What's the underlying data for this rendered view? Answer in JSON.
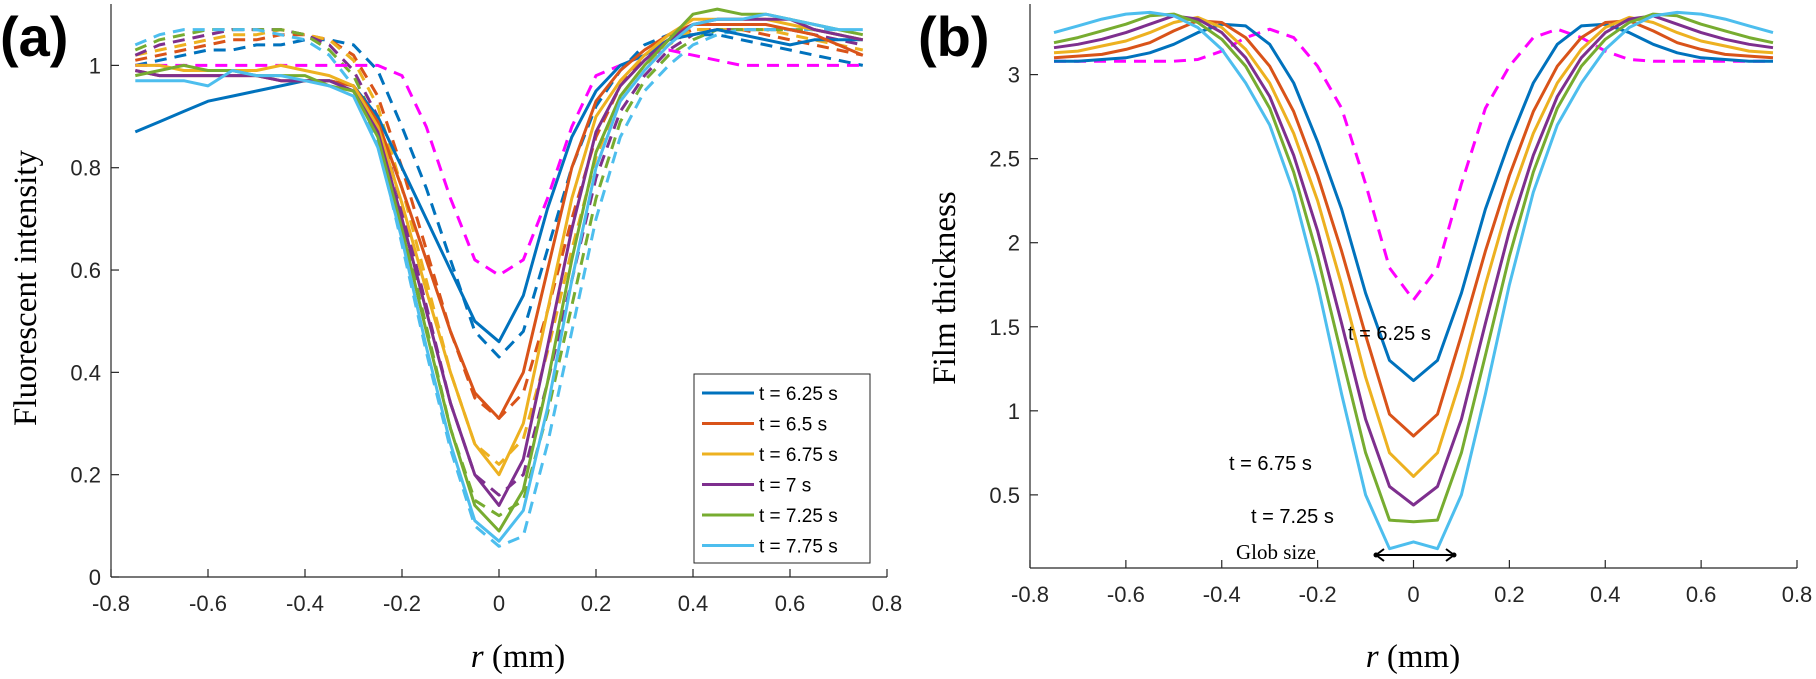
{
  "chart_data": [
    {
      "type": "line",
      "panel_label": "(a)",
      "xlabel_italic": "r",
      "xlabel_rest": " (mm)",
      "ylabel": "Fluorescent intensity",
      "xlim": [
        -0.8,
        0.8
      ],
      "ylim": [
        0,
        1.12
      ],
      "xticks": [
        -0.8,
        -0.6,
        -0.4,
        -0.2,
        0,
        0.2,
        0.4,
        0.6,
        0.8
      ],
      "yticks": [
        0,
        0.2,
        0.4,
        0.6,
        0.8,
        1
      ],
      "grid": false,
      "legend_position": "bottom-right",
      "x": [
        -0.75,
        -0.7,
        -0.65,
        -0.6,
        -0.55,
        -0.5,
        -0.45,
        -0.4,
        -0.35,
        -0.3,
        -0.25,
        -0.2,
        -0.15,
        -0.1,
        -0.05,
        0,
        0.05,
        0.1,
        0.15,
        0.2,
        0.25,
        0.3,
        0.35,
        0.4,
        0.45,
        0.5,
        0.55,
        0.6,
        0.65,
        0.7,
        0.75
      ],
      "series": [
        {
          "name": "t = 6.25 s",
          "color": "#0072BD",
          "style": "solid",
          "y": [
            0.87,
            0.89,
            0.91,
            0.93,
            0.94,
            0.95,
            0.96,
            0.97,
            0.97,
            0.96,
            0.9,
            0.8,
            0.7,
            0.6,
            0.5,
            0.46,
            0.55,
            0.72,
            0.86,
            0.95,
            1.0,
            1.02,
            1.05,
            1.06,
            1.07,
            1.06,
            1.05,
            1.04,
            1.05,
            1.05,
            1.05
          ]
        },
        {
          "name": "t = 6.5 s",
          "color": "#D95319",
          "style": "solid",
          "y": [
            0.99,
            0.98,
            0.98,
            0.98,
            0.98,
            0.98,
            0.97,
            0.97,
            0.97,
            0.96,
            0.89,
            0.76,
            0.62,
            0.48,
            0.36,
            0.31,
            0.4,
            0.6,
            0.8,
            0.93,
            0.99,
            1.03,
            1.06,
            1.08,
            1.08,
            1.08,
            1.08,
            1.07,
            1.06,
            1.04,
            1.02
          ]
        },
        {
          "name": "t = 6.75 s",
          "color": "#EDB120",
          "style": "solid",
          "y": [
            1.0,
            1.0,
            0.99,
            0.99,
            0.99,
            0.99,
            1.0,
            0.99,
            0.98,
            0.96,
            0.88,
            0.73,
            0.56,
            0.4,
            0.26,
            0.2,
            0.3,
            0.52,
            0.74,
            0.9,
            0.97,
            1.02,
            1.06,
            1.09,
            1.09,
            1.09,
            1.09,
            1.08,
            1.07,
            1.06,
            1.05
          ]
        },
        {
          "name": "t = 7 s",
          "color": "#7E2F8E",
          "style": "solid",
          "y": [
            0.99,
            0.98,
            0.98,
            0.98,
            0.98,
            0.98,
            0.97,
            0.97,
            0.97,
            0.95,
            0.87,
            0.7,
            0.52,
            0.34,
            0.2,
            0.14,
            0.23,
            0.45,
            0.68,
            0.87,
            0.96,
            1.01,
            1.05,
            1.08,
            1.09,
            1.09,
            1.09,
            1.09,
            1.07,
            1.06,
            1.05
          ]
        },
        {
          "name": "t = 7.25 s",
          "color": "#77AC30",
          "style": "solid",
          "y": [
            0.98,
            0.99,
            1.0,
            0.99,
            0.99,
            0.98,
            0.98,
            0.98,
            0.96,
            0.95,
            0.86,
            0.68,
            0.48,
            0.29,
            0.14,
            0.09,
            0.17,
            0.38,
            0.62,
            0.83,
            0.94,
            1.0,
            1.05,
            1.1,
            1.11,
            1.1,
            1.1,
            1.09,
            1.08,
            1.07,
            1.06
          ]
        },
        {
          "name": "t = 7.75 s",
          "color": "#4DBEEE",
          "style": "solid",
          "y": [
            0.97,
            0.97,
            0.97,
            0.96,
            0.99,
            0.98,
            0.98,
            0.97,
            0.96,
            0.94,
            0.84,
            0.66,
            0.45,
            0.26,
            0.11,
            0.07,
            0.13,
            0.33,
            0.58,
            0.8,
            0.93,
            0.99,
            1.04,
            1.08,
            1.09,
            1.09,
            1.1,
            1.09,
            1.08,
            1.07,
            1.07
          ]
        },
        {
          "color": "#0072BD",
          "style": "dashed",
          "y": [
            1.0,
            1.01,
            1.02,
            1.03,
            1.03,
            1.04,
            1.04,
            1.05,
            1.05,
            1.04,
            0.99,
            0.88,
            0.76,
            0.62,
            0.48,
            0.43,
            0.48,
            0.64,
            0.8,
            0.92,
            0.99,
            1.04,
            1.06,
            1.06,
            1.06,
            1.05,
            1.04,
            1.03,
            1.02,
            1.01,
            1.0
          ]
        },
        {
          "color": "#D95319",
          "style": "dashed",
          "y": [
            1.01,
            1.02,
            1.03,
            1.04,
            1.05,
            1.05,
            1.06,
            1.06,
            1.05,
            1.02,
            0.94,
            0.8,
            0.64,
            0.48,
            0.35,
            0.31,
            0.36,
            0.52,
            0.7,
            0.86,
            0.96,
            1.02,
            1.05,
            1.07,
            1.07,
            1.07,
            1.06,
            1.05,
            1.04,
            1.03,
            1.02
          ]
        },
        {
          "color": "#EDB120",
          "style": "dashed",
          "y": [
            1.02,
            1.03,
            1.04,
            1.05,
            1.06,
            1.06,
            1.07,
            1.06,
            1.05,
            1.01,
            0.92,
            0.76,
            0.58,
            0.4,
            0.26,
            0.22,
            0.27,
            0.44,
            0.64,
            0.82,
            0.94,
            1.0,
            1.04,
            1.07,
            1.07,
            1.07,
            1.07,
            1.06,
            1.05,
            1.04,
            1.03
          ]
        },
        {
          "color": "#7E2F8E",
          "style": "dashed",
          "y": [
            1.02,
            1.04,
            1.05,
            1.06,
            1.07,
            1.07,
            1.07,
            1.06,
            1.04,
            0.99,
            0.9,
            0.72,
            0.53,
            0.34,
            0.2,
            0.16,
            0.2,
            0.38,
            0.58,
            0.78,
            0.91,
            0.98,
            1.03,
            1.06,
            1.07,
            1.07,
            1.07,
            1.07,
            1.06,
            1.05,
            1.04
          ]
        },
        {
          "color": "#77AC30",
          "style": "dashed",
          "y": [
            1.03,
            1.05,
            1.06,
            1.07,
            1.07,
            1.07,
            1.07,
            1.06,
            1.03,
            0.98,
            0.88,
            0.69,
            0.49,
            0.29,
            0.15,
            0.12,
            0.15,
            0.32,
            0.53,
            0.74,
            0.89,
            0.97,
            1.02,
            1.05,
            1.07,
            1.07,
            1.07,
            1.07,
            1.07,
            1.06,
            1.05
          ]
        },
        {
          "color": "#4DBEEE",
          "style": "dashed",
          "y": [
            1.04,
            1.06,
            1.07,
            1.07,
            1.07,
            1.07,
            1.06,
            1.05,
            1.02,
            0.96,
            0.85,
            0.65,
            0.44,
            0.25,
            0.1,
            0.06,
            0.08,
            0.26,
            0.48,
            0.7,
            0.86,
            0.95,
            1.0,
            1.04,
            1.06,
            1.07,
            1.07,
            1.07,
            1.07,
            1.07,
            1.06
          ]
        },
        {
          "color": "#FF00FF",
          "style": "dashed",
          "y": [
            1.0,
            1.0,
            1.0,
            1.0,
            1.0,
            1.0,
            1.0,
            1.0,
            1.0,
            1.0,
            1.0,
            0.98,
            0.88,
            0.74,
            0.62,
            0.59,
            0.62,
            0.74,
            0.88,
            0.98,
            1.0,
            1.02,
            1.03,
            1.02,
            1.01,
            1.0,
            1.0,
            1.0,
            1.0,
            1.0,
            1.0
          ]
        }
      ]
    },
    {
      "type": "line",
      "panel_label": "(b)",
      "xlabel_italic": "r",
      "xlabel_rest": " (mm)",
      "ylabel": "Film thickness",
      "xlim": [
        -0.8,
        0.8
      ],
      "ylim": [
        0.065,
        3.42
      ],
      "xticks": [
        -0.8,
        -0.6,
        -0.4,
        -0.2,
        0,
        0.2,
        0.4,
        0.6,
        0.8
      ],
      "yticks": [
        0.5,
        1,
        1.5,
        2,
        2.5,
        3
      ],
      "grid": false,
      "annotations": {
        "t625": "t = 6.25 s",
        "t675": "t = 6.75 s",
        "t725": "t = 7.25 s",
        "glob": "Glob size"
      },
      "x": [
        -0.75,
        -0.7,
        -0.65,
        -0.6,
        -0.55,
        -0.5,
        -0.45,
        -0.4,
        -0.35,
        -0.3,
        -0.25,
        -0.2,
        -0.15,
        -0.1,
        -0.05,
        0,
        0.05,
        0.1,
        0.15,
        0.2,
        0.25,
        0.3,
        0.35,
        0.4,
        0.45,
        0.5,
        0.55,
        0.6,
        0.65,
        0.7,
        0.75
      ],
      "series": [
        {
          "color": "#0072BD",
          "style": "solid",
          "y": [
            3.08,
            3.08,
            3.09,
            3.1,
            3.13,
            3.18,
            3.25,
            3.3,
            3.29,
            3.18,
            2.95,
            2.6,
            2.2,
            1.7,
            1.3,
            1.18,
            1.3,
            1.7,
            2.2,
            2.6,
            2.95,
            3.18,
            3.29,
            3.3,
            3.25,
            3.18,
            3.13,
            3.1,
            3.09,
            3.08,
            3.08
          ]
        },
        {
          "color": "#D95319",
          "style": "solid",
          "y": [
            3.1,
            3.11,
            3.12,
            3.15,
            3.19,
            3.26,
            3.32,
            3.31,
            3.22,
            3.05,
            2.78,
            2.4,
            1.95,
            1.45,
            0.98,
            0.85,
            0.98,
            1.45,
            1.95,
            2.4,
            2.78,
            3.05,
            3.22,
            3.31,
            3.32,
            3.26,
            3.19,
            3.15,
            3.12,
            3.11,
            3.1
          ]
        },
        {
          "color": "#EDB120",
          "style": "solid",
          "y": [
            3.13,
            3.14,
            3.17,
            3.2,
            3.25,
            3.31,
            3.34,
            3.28,
            3.15,
            2.95,
            2.65,
            2.25,
            1.75,
            1.2,
            0.75,
            0.61,
            0.75,
            1.2,
            1.75,
            2.25,
            2.65,
            2.95,
            3.15,
            3.28,
            3.34,
            3.31,
            3.25,
            3.2,
            3.17,
            3.14,
            3.13
          ]
        },
        {
          "color": "#7E2F8E",
          "style": "solid",
          "y": [
            3.16,
            3.18,
            3.21,
            3.25,
            3.3,
            3.35,
            3.33,
            3.25,
            3.1,
            2.87,
            2.52,
            2.07,
            1.52,
            0.95,
            0.55,
            0.44,
            0.55,
            0.95,
            1.52,
            2.07,
            2.52,
            2.87,
            3.1,
            3.25,
            3.33,
            3.35,
            3.3,
            3.25,
            3.21,
            3.18,
            3.16
          ]
        },
        {
          "color": "#77AC30",
          "style": "solid",
          "y": [
            3.19,
            3.22,
            3.26,
            3.3,
            3.35,
            3.36,
            3.31,
            3.21,
            3.05,
            2.8,
            2.42,
            1.92,
            1.33,
            0.75,
            0.35,
            0.34,
            0.35,
            0.75,
            1.33,
            1.92,
            2.42,
            2.8,
            3.05,
            3.21,
            3.31,
            3.36,
            3.35,
            3.3,
            3.26,
            3.22,
            3.19
          ]
        },
        {
          "color": "#4DBEEE",
          "style": "solid",
          "y": [
            3.25,
            3.29,
            3.33,
            3.36,
            3.37,
            3.35,
            3.28,
            3.15,
            2.95,
            2.7,
            2.3,
            1.75,
            1.1,
            0.5,
            0.18,
            0.22,
            0.18,
            0.5,
            1.1,
            1.75,
            2.3,
            2.7,
            2.95,
            3.15,
            3.28,
            3.35,
            3.37,
            3.36,
            3.33,
            3.29,
            3.25
          ]
        },
        {
          "color": "#FF00FF",
          "style": "dashed",
          "y": [
            3.08,
            3.08,
            3.08,
            3.08,
            3.08,
            3.08,
            3.09,
            3.14,
            3.22,
            3.27,
            3.22,
            3.05,
            2.8,
            2.35,
            1.85,
            1.66,
            1.85,
            2.35,
            2.8,
            3.05,
            3.22,
            3.27,
            3.22,
            3.14,
            3.09,
            3.08,
            3.08,
            3.08,
            3.08,
            3.08,
            3.08
          ]
        }
      ]
    }
  ]
}
